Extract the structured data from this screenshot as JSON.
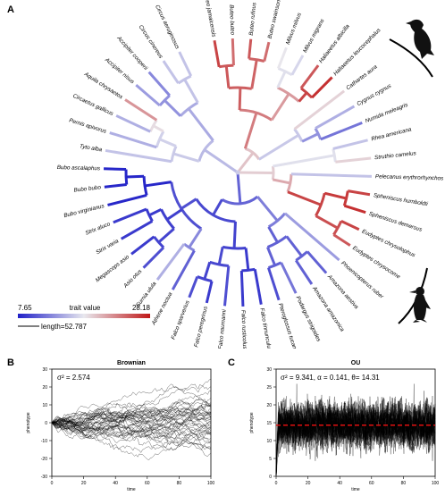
{
  "panel_a": {
    "letter": "A",
    "taxa": [
      {
        "name": "Buteo jamaicensis",
        "angle": -97,
        "value": 26
      },
      {
        "name": "Buteo buteo",
        "angle": -88,
        "value": 24
      },
      {
        "name": "Buteo rufinus",
        "angle": -80,
        "value": 25
      },
      {
        "name": "Buteo swainsoni",
        "angle": -72,
        "value": 24
      },
      {
        "name": "Milvus milvus",
        "angle": -63,
        "value": 18
      },
      {
        "name": "Milvus migrans",
        "angle": -56,
        "value": 17
      },
      {
        "name": "Haliaeetus albicilla",
        "angle": -49,
        "value": 25
      },
      {
        "name": "Haliaeetus leucocephalus",
        "angle": -41,
        "value": 27
      },
      {
        "name": "Cathartes aura",
        "angle": -30,
        "value": 19
      },
      {
        "name": "Cygnus cygnus",
        "angle": -18,
        "value": 15
      },
      {
        "name": "Numida meleagris",
        "angle": -9,
        "value": 12
      },
      {
        "name": "Rhea americana",
        "angle": 1,
        "value": 16
      },
      {
        "name": "Struthio camelus",
        "angle": 11,
        "value": 19
      },
      {
        "name": "Pelecanus erythrorhynchos",
        "angle": 21,
        "value": 16
      },
      {
        "name": "Spheniscus humboldti",
        "angle": 29,
        "value": 26
      },
      {
        "name": "Spheniscus demersus",
        "angle": 37,
        "value": 27
      },
      {
        "name": "Eudyptes chrysolophus",
        "angle": 45,
        "value": 26
      },
      {
        "name": "Eudyptes chrysocome",
        "angle": 53,
        "value": 25
      },
      {
        "name": "Phoenicopterus ruber",
        "angle": 62,
        "value": 14
      },
      {
        "name": "Amazona aestiva",
        "angle": 70,
        "value": 11
      },
      {
        "name": "Amazona amazonica",
        "angle": 78,
        "value": 11
      },
      {
        "name": "Podargus strigoides",
        "angle": 87,
        "value": 12
      },
      {
        "name": "Pteroglossus tucanus",
        "angle": 96,
        "value": 10
      },
      {
        "name": "Falco tinnunculus",
        "angle": 104,
        "value": 9
      },
      {
        "name": "Falco rusticolus",
        "angle": 112,
        "value": 9
      },
      {
        "name": "Falco naumanni",
        "angle": 120,
        "value": 10
      },
      {
        "name": "Falco peregrinus",
        "angle": 128,
        "value": 9
      },
      {
        "name": "Falco sparverius",
        "angle": 136,
        "value": 10
      },
      {
        "name": "Athene noctua",
        "angle": 145,
        "value": 11
      },
      {
        "name": "Surnia ulula",
        "angle": 153,
        "value": 15
      },
      {
        "name": "Asio otus",
        "angle": 161,
        "value": 10
      },
      {
        "name": "Megascops asio",
        "angle": 169,
        "value": 9
      },
      {
        "name": "Strix varia",
        "angle": 177,
        "value": 9
      },
      {
        "name": "Strix aluco",
        "angle": 185,
        "value": 9
      },
      {
        "name": "Bubo virginianus",
        "angle": 194,
        "value": 8
      },
      {
        "name": "Bubo bubo",
        "angle": 202,
        "value": 8
      },
      {
        "name": "Bubo ascalaphus",
        "angle": 210,
        "value": 8
      },
      {
        "name": "Tyto alba",
        "angle": 221,
        "value": 16
      },
      {
        "name": "Pernis apivorus",
        "angle": 231,
        "value": 15
      },
      {
        "name": "Circaetus gallicus",
        "angle": 240,
        "value": 15
      },
      {
        "name": "Aquila chrysaetos",
        "angle": 249,
        "value": 22
      },
      {
        "name": "Accipiter nisus",
        "angle": 236,
        "value": 14
      },
      {
        "name": "Accipiter cooperii",
        "angle": 243,
        "value": 13
      },
      {
        "name": "Circus cinereus",
        "angle": 251,
        "value": 16
      },
      {
        "name": "Circus aeruginosus",
        "angle": 258,
        "value": 16
      }
    ],
    "legend": {
      "min_label": "7.65",
      "max_label": "28.18",
      "title": "trait value",
      "length_label": "length=52.787",
      "min": 7.65,
      "max": 28.18,
      "color_low": "#2020c8",
      "color_mid": "#e8e8ee",
      "color_high": "#c01818"
    },
    "silhouettes": [
      "eagle-silhouette",
      "penguin-silhouette"
    ]
  },
  "panel_b": {
    "letter": "B",
    "title": "Brownian",
    "stat": "σ² = 2.574",
    "xlabel": "time",
    "ylabel": "phenotype"
  },
  "panel_c": {
    "letter": "C",
    "title": "OU",
    "stat": "σ² = 9.341, α = 0.141, θ= 14.31",
    "xlabel": "time",
    "ylabel": "phenotype"
  },
  "chart_data": [
    {
      "type": "line",
      "title": "Brownian",
      "xlabel": "time",
      "ylabel": "phenotype",
      "xlim": [
        0,
        100
      ],
      "ylim": [
        -30,
        30
      ],
      "x_ticks": [
        0,
        20,
        40,
        60,
        80,
        100
      ],
      "y_ticks": [
        -30,
        -20,
        -10,
        0,
        10,
        20,
        30
      ],
      "n_series": 45,
      "start_value": 0,
      "sigma2": 2.574
    },
    {
      "type": "line",
      "title": "OU",
      "xlabel": "time",
      "ylabel": "phenotype",
      "xlim": [
        0,
        100
      ],
      "ylim": [
        0,
        30
      ],
      "x_ticks": [
        0,
        20,
        40,
        60,
        80,
        100
      ],
      "y_ticks": [
        0,
        5,
        10,
        15,
        20,
        25,
        30
      ],
      "n_series": 30,
      "start_value": 0,
      "sigma2": 9.341,
      "alpha": 0.141,
      "theta": 14.31,
      "theta_line_color": "#e01010"
    }
  ]
}
